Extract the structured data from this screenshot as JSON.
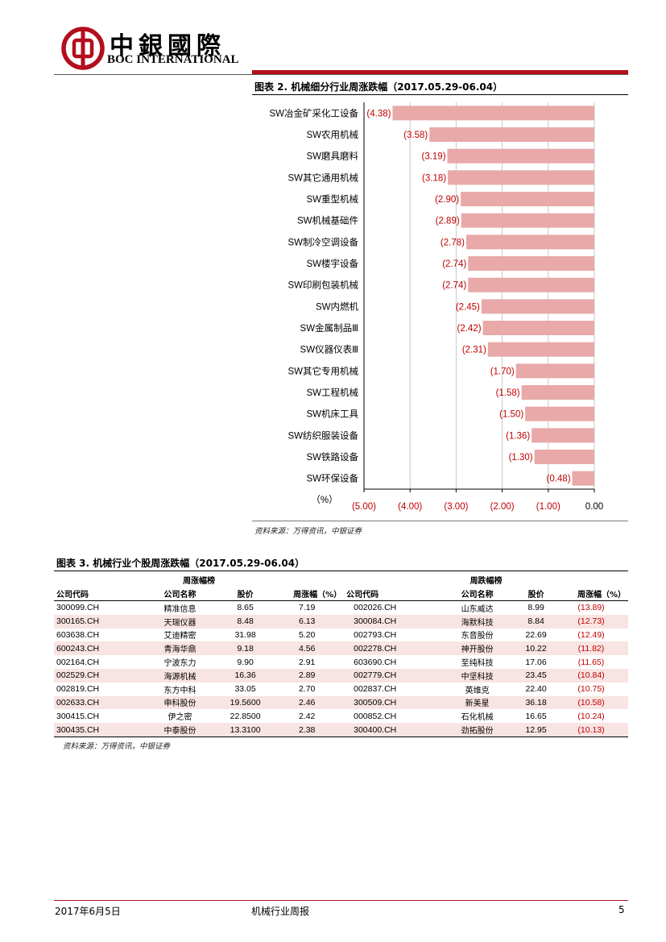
{
  "header": {
    "company_name": "中銀國際",
    "company_en": "BOC INTERNATIONAL",
    "accent_color": "#b30e1c"
  },
  "figure2": {
    "title": "图表 2. 机械细分行业周涨跌幅（2017.05.29-06.04）",
    "source": "资料来源：万得资讯，中银证券"
  },
  "chart_data": {
    "type": "bar",
    "orientation": "horizontal",
    "categories": [
      "SW冶金矿采化工设备",
      "SW农用机械",
      "SW磨具磨料",
      "SW其它通用机械",
      "SW重型机械",
      "SW机械基础件",
      "SW制冷空调设备",
      "SW楼宇设备",
      "SW印刷包装机械",
      "SW内燃机",
      "SW金属制品Ⅲ",
      "SW仪器仪表Ⅲ",
      "SW其它专用机械",
      "SW工程机械",
      "SW机床工具",
      "SW纺织服装设备",
      "SW铁路设备",
      "SW环保设备"
    ],
    "values": [
      -4.38,
      -3.58,
      -3.19,
      -3.18,
      -2.9,
      -2.89,
      -2.78,
      -2.74,
      -2.74,
      -2.45,
      -2.42,
      -2.31,
      -1.7,
      -1.58,
      -1.5,
      -1.36,
      -1.3,
      -0.48
    ],
    "value_labels": [
      "(4.38)",
      "(3.58)",
      "(3.19)",
      "(3.18)",
      "(2.90)",
      "(2.89)",
      "(2.78)",
      "(2.74)",
      "(2.74)",
      "(2.45)",
      "(2.42)",
      "(2.31)",
      "(1.70)",
      "(1.58)",
      "(1.50)",
      "(1.36)",
      "(1.30)",
      "(0.48)"
    ],
    "xlim": [
      -5,
      0
    ],
    "x_ticks": [
      "(5.00)",
      "(4.00)",
      "(3.00)",
      "(2.00)",
      "(1.00)",
      "0.00"
    ],
    "x_tick_values": [
      -5,
      -4,
      -3,
      -2,
      -1,
      0
    ],
    "xlabel": "（%）",
    "grid": true,
    "bar_color": "#e8a9a8",
    "label_color": "#c00000"
  },
  "figure3": {
    "title": "图表 3. 机械行业个股周涨跌幅（2017.05.29-06.04）",
    "source": "资料来源：万得资讯，中银证券",
    "group_left": "周涨幅榜",
    "group_right": "周跌幅榜",
    "headers": [
      "公司代码",
      "公司名称",
      "股价",
      "周涨幅（%）",
      "公司代码",
      "公司名称",
      "股价",
      "周涨幅（%）"
    ],
    "rows": [
      [
        "300099.CH",
        "精准信息",
        "8.65",
        "7.19",
        "002026.CH",
        "山东威达",
        "8.99",
        "(13.89)"
      ],
      [
        "300165.CH",
        "天瑞仪器",
        "8.48",
        "6.13",
        "300084.CH",
        "海默科技",
        "8.84",
        "(12.73)"
      ],
      [
        "603638.CH",
        "艾迪精密",
        "31.98",
        "5.20",
        "002793.CH",
        "东音股份",
        "22.69",
        "(12.49)"
      ],
      [
        "600243.CH",
        "青海华鼎",
        "9.18",
        "4.56",
        "002278.CH",
        "神开股份",
        "10.22",
        "(11.82)"
      ],
      [
        "002164.CH",
        "宁波东力",
        "9.90",
        "2.91",
        "603690.CH",
        "至纯科技",
        "17.06",
        "(11.65)"
      ],
      [
        "002529.CH",
        "海源机械",
        "16.36",
        "2.89",
        "002779.CH",
        "中坚科技",
        "23.45",
        "(10.84)"
      ],
      [
        "002819.CH",
        "东方中科",
        "33.05",
        "2.70",
        "002837.CH",
        "英维克",
        "22.40",
        "(10.75)"
      ],
      [
        "002633.CH",
        "申科股份",
        "19.5600",
        "2.46",
        "300509.CH",
        "新美星",
        "36.18",
        "(10.58)"
      ],
      [
        "300415.CH",
        "伊之密",
        "22.8500",
        "2.42",
        "000852.CH",
        "石化机械",
        "16.65",
        "(10.24)"
      ],
      [
        "300435.CH",
        "中泰股份",
        "13.3100",
        "2.38",
        "300400.CH",
        "劲拓股份",
        "12.95",
        "(10.13)"
      ]
    ]
  },
  "footer": {
    "date": "2017年6月5日",
    "report_name": "机械行业周报",
    "page_number": "5"
  }
}
